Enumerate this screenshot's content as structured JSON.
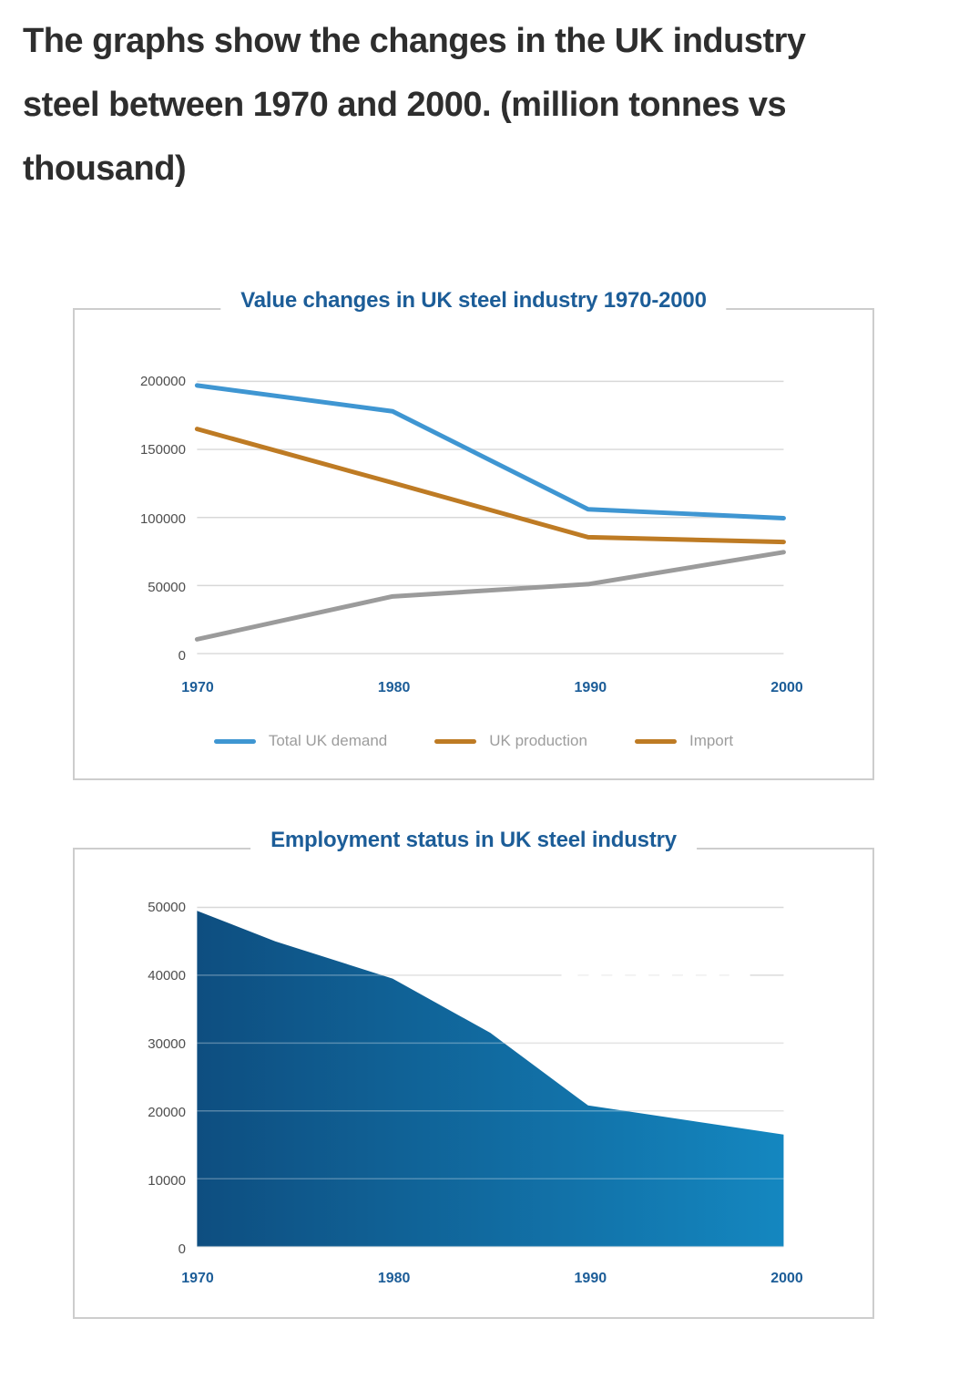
{
  "heading": {
    "lines": [
      "The graphs show the changes in the UK industry",
      "steel between 1970 and 2000. (million tonnes vs",
      "thousand)"
    ]
  },
  "colors": {
    "heading_text": "#2e2e2e",
    "title_blue": "#1c5d98",
    "year_label_blue": "#1c5d98",
    "axis_tick_text": "#4e4e4e",
    "legend_text": "#9d9d9d",
    "gridline": "#d8d8d8",
    "panel_border": "#cdcdcd"
  },
  "chart_data": [
    {
      "type": "line",
      "title": "Value changes in UK steel industry 1970-2000",
      "x": [
        1970,
        1980,
        1990,
        2000
      ],
      "ylim": [
        0,
        200000
      ],
      "yticks": [
        0,
        50000,
        100000,
        150000,
        200000
      ],
      "grid": true,
      "legend_position": "bottom",
      "series": [
        {
          "name": "Total UK demand",
          "color": "#3f96d2",
          "legend_color": "#3f96d2",
          "values": [
            197000,
            178000,
            106000,
            99500
          ]
        },
        {
          "name": "UK production",
          "color": "#be7b24",
          "legend_color": "#be7b24",
          "values": [
            165000,
            125500,
            85500,
            82000
          ]
        },
        {
          "name": "Import",
          "color": "#9b9b9b",
          "legend_color": "#be7b24",
          "values": [
            10500,
            42000,
            51000,
            74500
          ]
        }
      ]
    },
    {
      "type": "area",
      "title": "Employment status in UK steel industry",
      "x": [
        1970,
        1974,
        1980,
        1985,
        1990,
        2000
      ],
      "values": [
        49500,
        45000,
        39500,
        31500,
        20800,
        16500
      ],
      "x_ticks": [
        1970,
        1980,
        1990,
        2000
      ],
      "ylim": [
        0,
        50000
      ],
      "yticks": [
        0,
        10000,
        20000,
        30000,
        40000,
        50000
      ],
      "grid": true,
      "fill_gradient": [
        "#0e4e80",
        "#1487c0"
      ],
      "broken_gridline_value": 40000
    }
  ]
}
